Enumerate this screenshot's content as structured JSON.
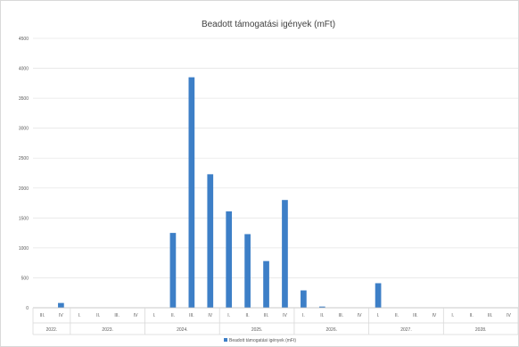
{
  "chart_data": {
    "type": "bar",
    "title": "Beadott támogatási igények (mFt)",
    "series": [
      {
        "name": "Beadott támogatási igények (mFt)",
        "color": "#3d7fc7",
        "values": [
          0,
          80,
          0,
          0,
          0,
          0,
          0,
          1250,
          3850,
          2230,
          1610,
          1230,
          780,
          1800,
          290,
          20,
          0,
          0,
          410,
          0,
          0,
          0,
          0,
          0,
          0,
          0
        ]
      }
    ],
    "quarter_labels": [
      "III.",
      "IV",
      "I.",
      "II.",
      "III.",
      "IV",
      "I.",
      "II.",
      "III.",
      "IV",
      "I.",
      "II.",
      "III.",
      "IV",
      "I.",
      "II.",
      "III.",
      "IV",
      "I.",
      "II.",
      "III.",
      "IV",
      "I.",
      "II.",
      "III.",
      "IV"
    ],
    "year_groups": [
      {
        "label": "2022.",
        "count": 2
      },
      {
        "label": "2023.",
        "count": 4
      },
      {
        "label": "2024.",
        "count": 4
      },
      {
        "label": "2025.",
        "count": 4
      },
      {
        "label": "2026.",
        "count": 4
      },
      {
        "label": "2027.",
        "count": 4
      },
      {
        "label": "2028.",
        "count": 4
      }
    ],
    "y_ticks": [
      0,
      500,
      1000,
      1500,
      2000,
      2500,
      3000,
      3500,
      4000,
      4500
    ],
    "ylim": [
      0,
      4500
    ],
    "grid": true,
    "legend_position": "bottom"
  }
}
